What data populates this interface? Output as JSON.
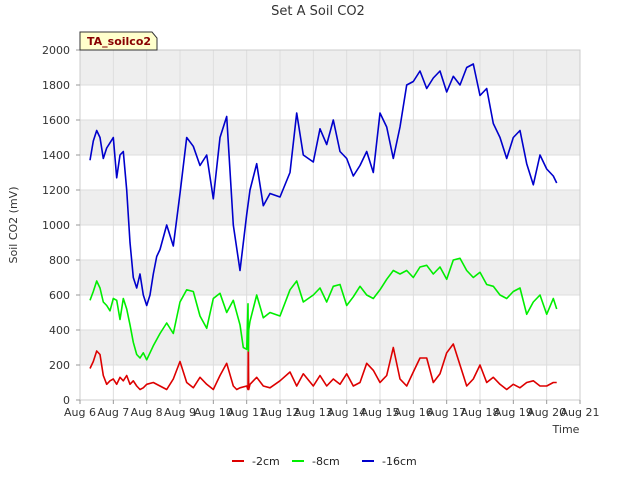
{
  "chart_data": {
    "type": "line",
    "title": "Set A Soil CO2",
    "xlabel": "Time",
    "ylabel": "Soil CO2 (mV)",
    "badge": "TA_soilco2",
    "x_ticks": [
      "Aug 6",
      "Aug 7",
      "Aug 8",
      "Aug 9",
      "Aug 10",
      "Aug 11",
      "Aug 12",
      "Aug 13",
      "Aug 14",
      "Aug 15",
      "Aug 16",
      "Aug 17",
      "Aug 18",
      "Aug 19",
      "Aug 20",
      "Aug 21"
    ],
    "xlim": [
      6,
      21
    ],
    "ylim": [
      0,
      2000
    ],
    "y_ticks": [
      0,
      200,
      400,
      600,
      800,
      1000,
      1200,
      1400,
      1600,
      1800,
      2000
    ],
    "grid": true,
    "legend_position": "bottom",
    "colors": {
      "background_band": "#eeeeee",
      "grid": "#dddddd",
      "badge_fill": "#ffffcc"
    },
    "series": [
      {
        "name": "-2cm",
        "color": "#dd0000",
        "x": [
          6.3,
          6.4,
          6.5,
          6.6,
          6.7,
          6.8,
          6.9,
          7.0,
          7.1,
          7.2,
          7.3,
          7.4,
          7.5,
          7.6,
          7.7,
          7.8,
          7.9,
          8.0,
          8.2,
          8.4,
          8.6,
          8.8,
          9.0,
          9.2,
          9.4,
          9.6,
          9.8,
          10.0,
          10.2,
          10.4,
          10.6,
          10.7,
          10.8,
          11.0,
          11.04,
          11.05,
          11.06,
          11.1,
          11.3,
          11.5,
          11.7,
          12.0,
          12.3,
          12.5,
          12.7,
          13.0,
          13.2,
          13.4,
          13.6,
          13.8,
          14.0,
          14.2,
          14.4,
          14.6,
          14.8,
          15.0,
          15.2,
          15.4,
          15.6,
          15.8,
          16.0,
          16.2,
          16.4,
          16.6,
          16.8,
          17.0,
          17.2,
          17.4,
          17.6,
          17.8,
          18.0,
          18.2,
          18.4,
          18.6,
          18.8,
          19.0,
          19.2,
          19.4,
          19.6,
          19.8,
          20.0,
          20.2,
          20.3
        ],
        "values": [
          180,
          220,
          280,
          260,
          140,
          90,
          110,
          120,
          90,
          130,
          110,
          140,
          90,
          110,
          80,
          60,
          70,
          90,
          100,
          80,
          60,
          120,
          220,
          100,
          70,
          130,
          90,
          60,
          140,
          210,
          80,
          60,
          70,
          80,
          60,
          360,
          60,
          90,
          130,
          80,
          70,
          110,
          160,
          80,
          150,
          80,
          140,
          80,
          120,
          90,
          150,
          80,
          100,
          210,
          170,
          100,
          140,
          300,
          120,
          80,
          160,
          240,
          240,
          100,
          150,
          270,
          320,
          200,
          80,
          120,
          200,
          100,
          130,
          90,
          60,
          90,
          70,
          100,
          110,
          80,
          80,
          100,
          100
        ]
      },
      {
        "name": "-8cm",
        "color": "#00ee00",
        "x": [
          6.3,
          6.4,
          6.5,
          6.6,
          6.7,
          6.8,
          6.9,
          7.0,
          7.1,
          7.2,
          7.3,
          7.4,
          7.5,
          7.6,
          7.7,
          7.8,
          7.9,
          8.0,
          8.2,
          8.4,
          8.6,
          8.8,
          9.0,
          9.2,
          9.4,
          9.6,
          9.8,
          10.0,
          10.2,
          10.4,
          10.6,
          10.8,
          10.9,
          11.0,
          11.04,
          11.05,
          11.06,
          11.1,
          11.3,
          11.5,
          11.7,
          12.0,
          12.3,
          12.5,
          12.7,
          13.0,
          13.2,
          13.4,
          13.6,
          13.8,
          14.0,
          14.2,
          14.4,
          14.6,
          14.8,
          15.0,
          15.2,
          15.4,
          15.6,
          15.8,
          16.0,
          16.2,
          16.4,
          16.6,
          16.8,
          17.0,
          17.2,
          17.4,
          17.6,
          17.8,
          18.0,
          18.2,
          18.4,
          18.6,
          18.8,
          19.0,
          19.2,
          19.4,
          19.6,
          19.8,
          20.0,
          20.2,
          20.3
        ],
        "values": [
          570,
          620,
          680,
          640,
          560,
          540,
          510,
          580,
          570,
          460,
          580,
          520,
          430,
          330,
          260,
          240,
          270,
          230,
          310,
          380,
          440,
          380,
          560,
          630,
          620,
          480,
          410,
          580,
          610,
          500,
          570,
          430,
          300,
          290,
          550,
          280,
          400,
          450,
          600,
          470,
          500,
          480,
          630,
          680,
          560,
          600,
          640,
          560,
          650,
          660,
          540,
          590,
          650,
          600,
          580,
          630,
          690,
          740,
          720,
          740,
          700,
          760,
          770,
          720,
          760,
          690,
          800,
          810,
          740,
          700,
          730,
          660,
          650,
          600,
          580,
          620,
          640,
          490,
          560,
          600,
          490,
          580,
          520
        ]
      },
      {
        "name": "-16cm",
        "color": "#0000cc",
        "x": [
          6.3,
          6.4,
          6.5,
          6.6,
          6.7,
          6.8,
          6.9,
          7.0,
          7.1,
          7.2,
          7.3,
          7.4,
          7.5,
          7.6,
          7.7,
          7.8,
          7.9,
          8.0,
          8.1,
          8.2,
          8.3,
          8.4,
          8.6,
          8.8,
          9.0,
          9.2,
          9.4,
          9.6,
          9.8,
          10.0,
          10.2,
          10.4,
          10.6,
          10.8,
          11.0,
          11.1,
          11.3,
          11.5,
          11.7,
          12.0,
          12.3,
          12.5,
          12.7,
          13.0,
          13.2,
          13.4,
          13.6,
          13.8,
          14.0,
          14.2,
          14.4,
          14.6,
          14.8,
          15.0,
          15.2,
          15.4,
          15.6,
          15.8,
          16.0,
          16.2,
          16.4,
          16.6,
          16.8,
          17.0,
          17.2,
          17.4,
          17.6,
          17.8,
          18.0,
          18.2,
          18.4,
          18.6,
          18.8,
          19.0,
          19.2,
          19.4,
          19.6,
          19.8,
          20.0,
          20.2,
          20.3
        ],
        "values": [
          1370,
          1480,
          1540,
          1500,
          1380,
          1440,
          1470,
          1500,
          1270,
          1400,
          1420,
          1200,
          900,
          700,
          640,
          720,
          600,
          540,
          600,
          720,
          820,
          860,
          1000,
          880,
          1180,
          1500,
          1450,
          1340,
          1400,
          1150,
          1500,
          1620,
          1000,
          740,
          1060,
          1200,
          1350,
          1110,
          1180,
          1160,
          1300,
          1640,
          1400,
          1360,
          1550,
          1460,
          1600,
          1420,
          1380,
          1280,
          1340,
          1420,
          1300,
          1640,
          1560,
          1380,
          1560,
          1800,
          1820,
          1880,
          1780,
          1840,
          1880,
          1760,
          1850,
          1800,
          1900,
          1920,
          1740,
          1780,
          1580,
          1500,
          1380,
          1500,
          1540,
          1350,
          1230,
          1400,
          1320,
          1280,
          1240
        ]
      }
    ]
  }
}
